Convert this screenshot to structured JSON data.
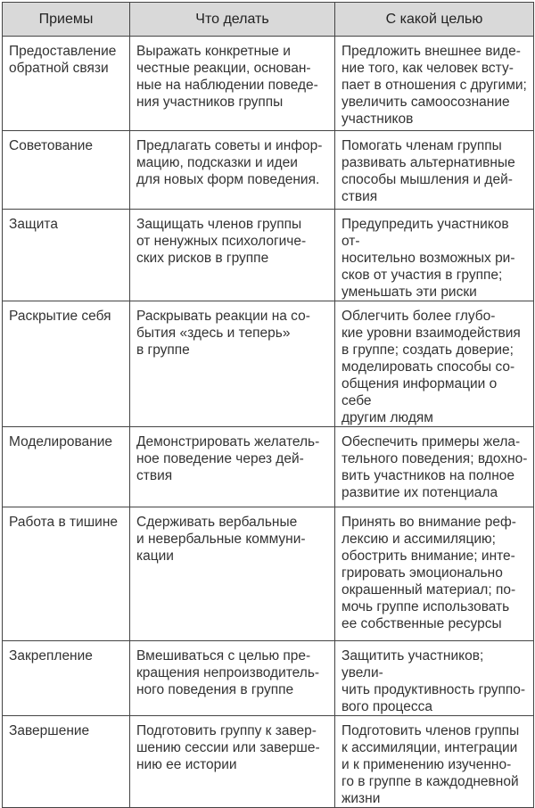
{
  "table": {
    "headers": [
      "Приемы",
      "Что делать",
      "С какой целью"
    ],
    "rows": [
      [
        "Предоставление\nобратной связи",
        "Выражать конкретные и\nчестные реакции, основан-\nные на наблюдении поведе-\nния участников группы",
        "Предложить внешнее виде-\nние того, как человек всту-\nпает в отношения с другими;\nувеличить самоосознание\nучастников"
      ],
      [
        "Советование",
        "Предлагать советы и инфор-\nмацию, подсказки и идеи\nдля новых форм поведения.",
        "Помогать членам группы\nразвивать альтернативные\nспособы мышления и дей-\nствия"
      ],
      [
        "Защита",
        "Защищать членов группы\nот ненужных психологиче-\nских рисков в группе",
        "Предупредить участников от-\nносительно возможных ри-\nсков от участия в группе;\nуменьшать эти риски"
      ],
      [
        "Раскрытие себя",
        "Раскрывать реакции на со-\nбытия «здесь и теперь»\nв группе",
        "Облегчить более глубо-\nкие уровни взаимодействия\nв группе; создать доверие;\nмоделировать способы со-\nобщения информации о себе\nдругим людям"
      ],
      [
        "Моделирование",
        "Демонстрировать желатель-\nное поведение через дей-\nствия",
        "Обеспечить примеры жела-\nтельного поведения; вдохно-\nвить участников на полное\nразвитие их потенциала"
      ],
      [
        "Работа в тишине",
        "Сдерживать вербальные\nи невербальные коммуни-\nкации",
        "Принять во внимание реф-\nлексию и ассимиляцию;\nобострить внимание; инте-\nгрировать эмоционально\nокрашенный материал; по-\nмочь группе использовать\nее собственные ресурсы"
      ],
      [
        "Закрепление",
        "Вмешиваться с целью пре-\nкращения непроизводитель-\nного поведения в группе",
        "Защитить участников; увели-\nчить продуктивность группо-\nвого процесса"
      ],
      [
        "Завершение",
        "Подготовить группу к завер-\nшению сессии или заверше-\nнию ее истории",
        "Подготовить членов группы\nк ассимиляции, интеграции\nи к применению изученно-\nго в группе в каждодневной\nжизни"
      ]
    ],
    "header_bg": "#d9d9d9"
  }
}
